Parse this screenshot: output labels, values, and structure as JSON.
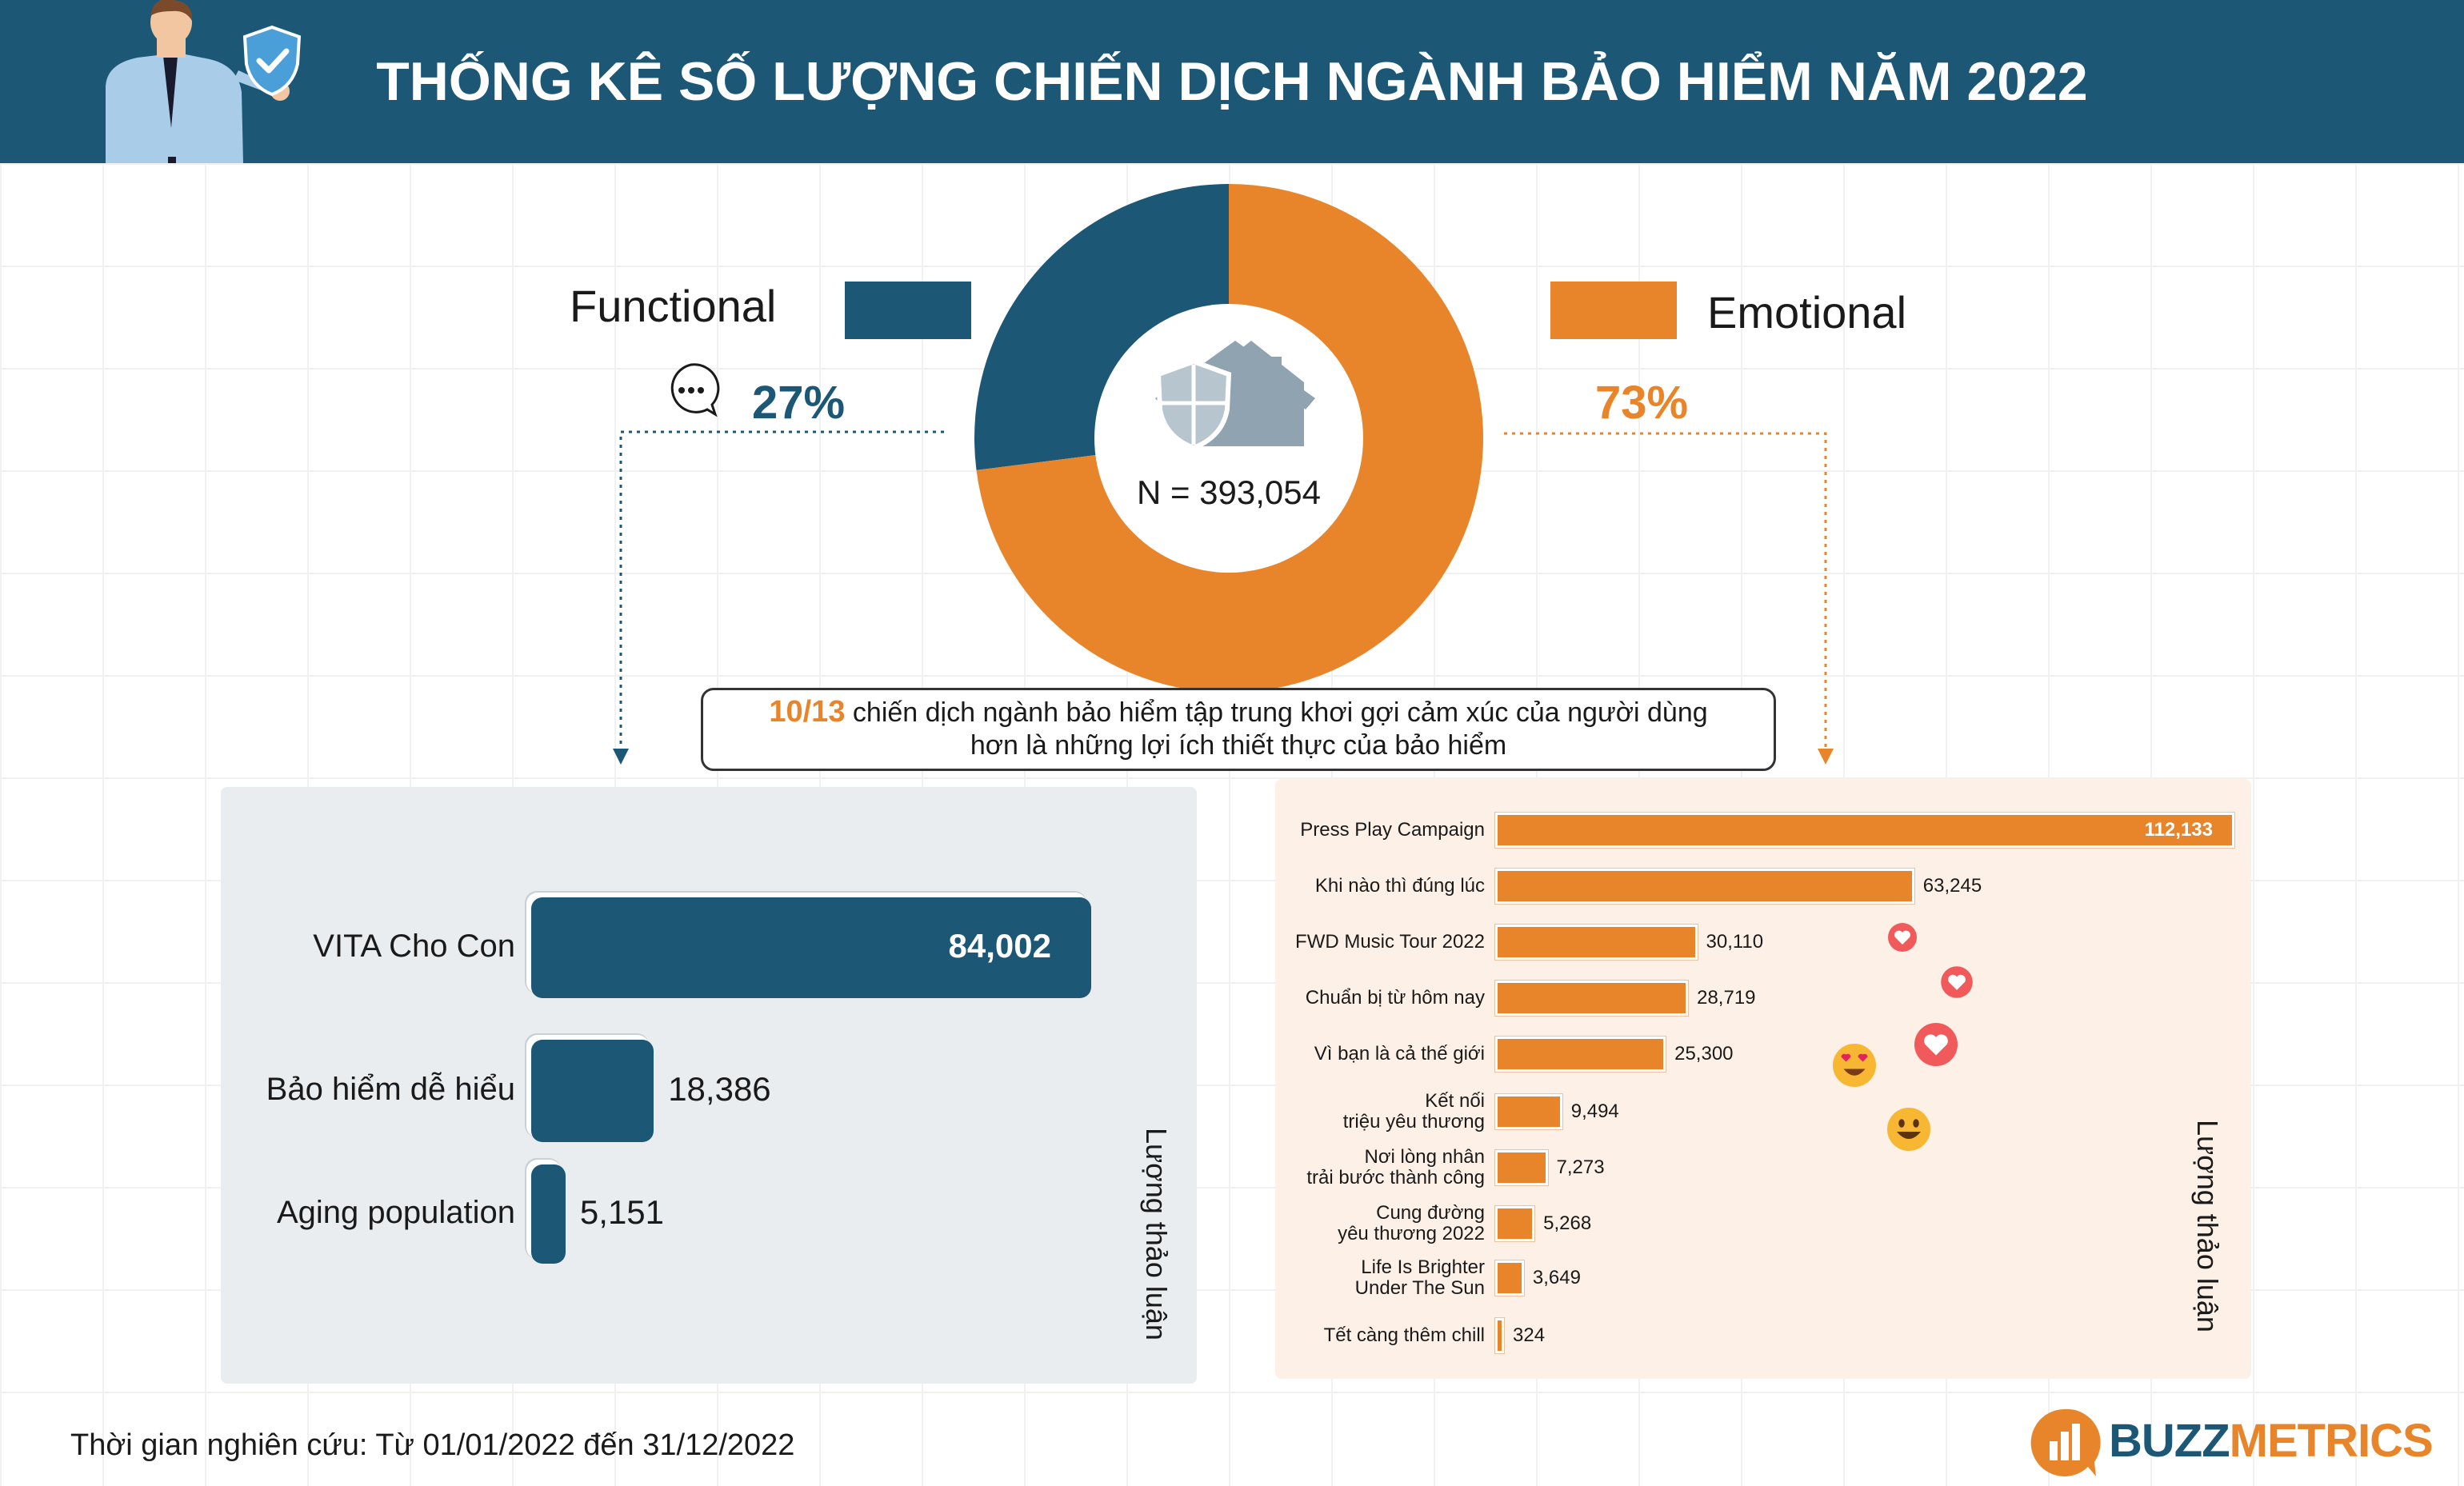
{
  "header": {
    "title": "THỐNG KÊ SỐ LƯỢNG CHIẾN DỊCH NGÀNH BẢO HIỂM NĂM 2022"
  },
  "colors": {
    "functional": "#1c5876",
    "emotional": "#e8852a",
    "header_bg": "#1c5876"
  },
  "legend": {
    "functional": {
      "label": "Functional",
      "percent": "27%"
    },
    "emotional": {
      "label": "Emotional",
      "percent": "73%"
    }
  },
  "donut": {
    "center_text": "N = 393,054"
  },
  "callout": {
    "highlight": "10/13",
    "line1": "chiến dịch ngành bảo hiểm tập trung khơi gợi cảm xúc của người dùng",
    "line2": "hơn là những lợi ích thiết thực của bảo hiểm"
  },
  "left_panel": {
    "axis_label": "Lượng thảo luận"
  },
  "right_panel": {
    "axis_label": "Lượng thảo luận"
  },
  "footer": {
    "note": "Thời gian nghiên cứu: Từ 01/01/2022 đến 31/12/2022"
  },
  "brand": {
    "part1": "BUZZ",
    "part2": "METRICS"
  },
  "chart_data": [
    {
      "type": "pie",
      "categories": [
        "Functional",
        "Emotional"
      ],
      "values": [
        27,
        73
      ],
      "total": 393054
    },
    {
      "type": "bar",
      "orientation": "horizontal",
      "series": [
        {
          "values": [
            84002,
            18386,
            5151
          ]
        }
      ],
      "categories": [
        "VITA Cho Con",
        "Bảo hiểm dễ hiểu",
        "Aging population"
      ],
      "value_labels": [
        "84,002",
        "18,386",
        "5,151"
      ]
    },
    {
      "type": "bar",
      "orientation": "horizontal",
      "series": [
        {
          "values": [
            112133,
            63245,
            30110,
            28719,
            25300,
            9494,
            7273,
            5268,
            3649,
            324
          ]
        }
      ],
      "categories": [
        [
          "Press Play Campaign"
        ],
        [
          "Khi nào thì đúng lúc"
        ],
        [
          "FWD Music Tour 2022"
        ],
        [
          "Chuẩn bị từ hôm nay"
        ],
        [
          "Vì bạn là cả thế giới"
        ],
        [
          "Kết nối",
          "triệu yêu thương"
        ],
        [
          "Nơi lòng nhân",
          "trải bước thành công"
        ],
        [
          "Cung đường",
          "yêu thương 2022"
        ],
        [
          "Life Is Brighter",
          "Under The Sun"
        ],
        [
          "Tết càng thêm chill"
        ]
      ],
      "value_labels": [
        "112,133",
        "63,245",
        "30,110",
        "28,719",
        "25,300",
        "9,494",
        "7,273",
        "5,268",
        "3,649",
        "324"
      ]
    }
  ]
}
